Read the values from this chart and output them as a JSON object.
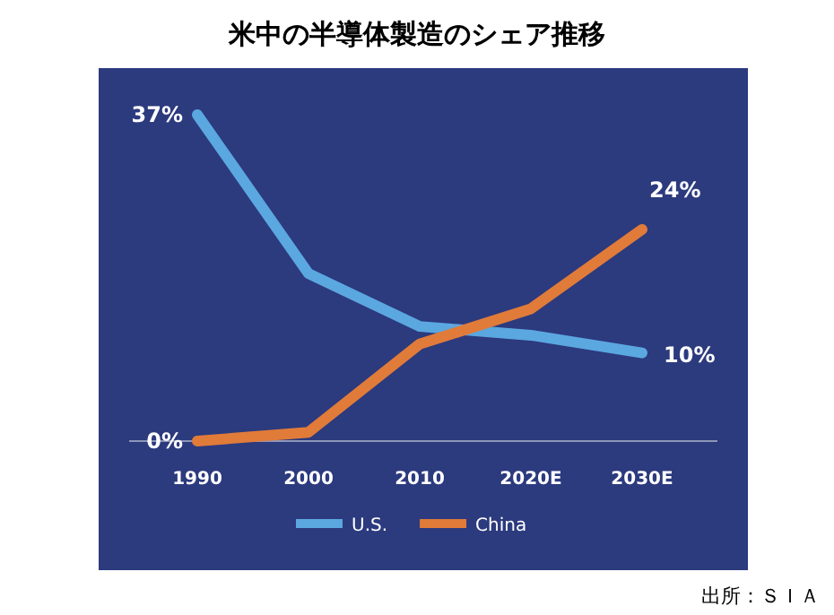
{
  "chart_data": {
    "type": "line",
    "title": "米中の半導体製造のシェア推移",
    "categories": [
      "1990",
      "2000",
      "2010",
      "2020E",
      "2030E"
    ],
    "legend": "bottom",
    "marker": "none",
    "line_style": "solid",
    "series": [
      {
        "name": "U.S.",
        "color": "#5ba7e0",
        "values": [
          37,
          19,
          13,
          12,
          10
        ],
        "value_labels": [
          "37%",
          null,
          null,
          null,
          "10%"
        ]
      },
      {
        "name": "China",
        "color": "#e07b3a",
        "values": [
          0,
          1,
          11,
          15,
          24
        ],
        "value_labels": [
          "0%",
          null,
          null,
          null,
          "24%"
        ]
      }
    ],
    "annotations": [
      "出所：ＳＩＡ"
    ]
  }
}
